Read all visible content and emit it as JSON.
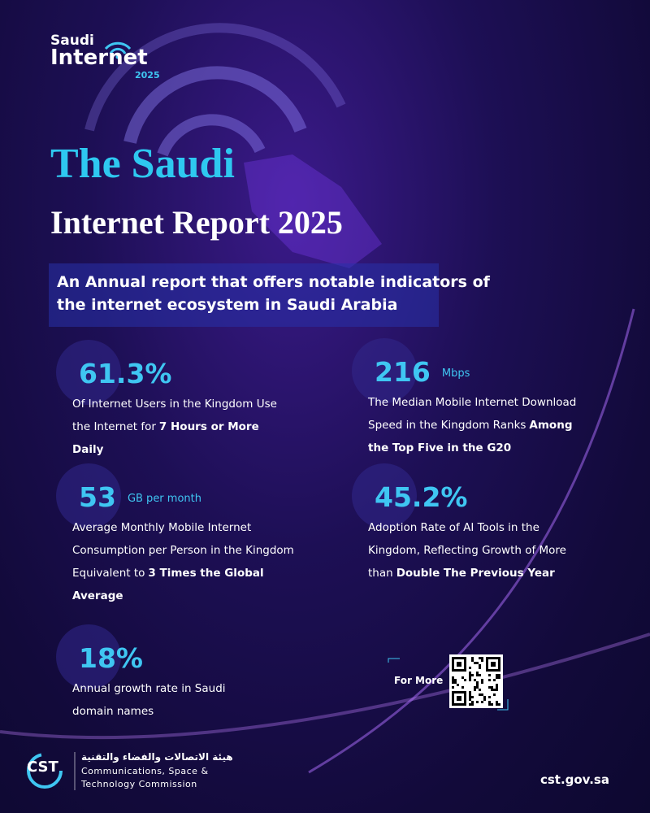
{
  "logo": {
    "line1": "Saudi",
    "line2": "Internet",
    "line3": "2025"
  },
  "header": {
    "title_line1": "The Saudi",
    "title_line2": "Internet Report 2025",
    "subtitle": "An Annual report that offers notable indicators of the internet ecosystem in Saudi Arabia"
  },
  "stats": [
    {
      "value": "61.3%",
      "description": "Of Internet Users in the Kingdom Use the Internet for",
      "highlight": "7 Hours or More Daily"
    },
    {
      "value": "216",
      "unit": "Mbps",
      "description": "The Median Mobile Internet Download Speed in the Kingdom Ranks",
      "highlight": "Among the Top Five in the G20"
    },
    {
      "value": "53",
      "unit": "GB per month",
      "description": "Average Monthly Mobile Internet Consumption per Person in the Kingdom Equivalent to",
      "highlight": "3 Times the Global Average"
    },
    {
      "value": "45.2%",
      "description": "Adoption Rate of AI Tools in the Kingdom, Reflecting Growth of More than",
      "highlight": "Double The Previous Year"
    },
    {
      "value": "18%",
      "description": "Annual growth rate in Saudi domain names"
    }
  ],
  "qr": {
    "label": "For More"
  },
  "footer": {
    "logo": "CST",
    "arabic": "هيئة الاتصالات والفضاء والتقنية",
    "line1": "Communications, Space &",
    "line2": "Technology Commission",
    "url": "cst.gov.sa"
  }
}
